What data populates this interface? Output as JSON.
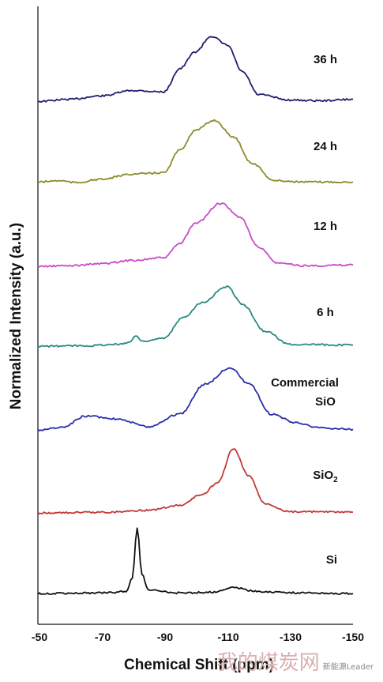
{
  "chart_data": {
    "type": "line",
    "xlabel": "Chemical Shift (ppm)",
    "ylabel": "Normalized Intensity (a.u.)",
    "xlim": [
      -50,
      -150
    ],
    "x_ticks": [
      "-50",
      "-70",
      "-90",
      "-110",
      "-130",
      "-150"
    ],
    "series": [
      {
        "name": "36 h",
        "color": "#1f1f6e",
        "points": [
          [
            -50,
            0.02
          ],
          [
            -60,
            0.05
          ],
          [
            -70,
            0.1
          ],
          [
            -80,
            0.18
          ],
          [
            -90,
            0.16
          ],
          [
            -95,
            0.5
          ],
          [
            -100,
            0.75
          ],
          [
            -105,
            0.98
          ],
          [
            -110,
            0.85
          ],
          [
            -115,
            0.45
          ],
          [
            -120,
            0.12
          ],
          [
            -130,
            0.04
          ],
          [
            -140,
            0.03
          ],
          [
            -150,
            0.05
          ]
        ]
      },
      {
        "name": "24 h",
        "color": "#8c8c2a",
        "points": [
          [
            -50,
            0.02
          ],
          [
            -57,
            0.04
          ],
          [
            -62,
            0.01
          ],
          [
            -70,
            0.06
          ],
          [
            -80,
            0.14
          ],
          [
            -90,
            0.16
          ],
          [
            -95,
            0.5
          ],
          [
            -100,
            0.8
          ],
          [
            -106,
            0.95
          ],
          [
            -112,
            0.7
          ],
          [
            -118,
            0.3
          ],
          [
            -125,
            0.04
          ],
          [
            -135,
            0.02
          ],
          [
            -150,
            0.02
          ]
        ]
      },
      {
        "name": "12 h",
        "color": "#c84bc8",
        "points": [
          [
            -50,
            0.01
          ],
          [
            -60,
            0.02
          ],
          [
            -70,
            0.05
          ],
          [
            -80,
            0.1
          ],
          [
            -90,
            0.14
          ],
          [
            -95,
            0.35
          ],
          [
            -100,
            0.65
          ],
          [
            -108,
            0.95
          ],
          [
            -114,
            0.75
          ],
          [
            -120,
            0.3
          ],
          [
            -126,
            0.06
          ],
          [
            -135,
            0.02
          ],
          [
            -150,
            0.03
          ]
        ]
      },
      {
        "name": "6 h",
        "color": "#2a8a80",
        "points": [
          [
            -50,
            0.02
          ],
          [
            -65,
            0.03
          ],
          [
            -75,
            0.05
          ],
          [
            -79,
            0.08
          ],
          [
            -81,
            0.18
          ],
          [
            -83,
            0.1
          ],
          [
            -90,
            0.14
          ],
          [
            -96,
            0.45
          ],
          [
            -102,
            0.68
          ],
          [
            -110,
            0.92
          ],
          [
            -115,
            0.65
          ],
          [
            -122,
            0.25
          ],
          [
            -130,
            0.05
          ],
          [
            -150,
            0.04
          ]
        ]
      },
      {
        "name": "Commercial SiO",
        "color": "#2b2fa8",
        "points": [
          [
            -50,
            0.01
          ],
          [
            -58,
            0.05
          ],
          [
            -65,
            0.22
          ],
          [
            -75,
            0.18
          ],
          [
            -85,
            0.06
          ],
          [
            -95,
            0.25
          ],
          [
            -103,
            0.7
          ],
          [
            -111,
            0.95
          ],
          [
            -117,
            0.7
          ],
          [
            -124,
            0.25
          ],
          [
            -132,
            0.12
          ],
          [
            -140,
            0.04
          ],
          [
            -150,
            0.02
          ]
        ]
      },
      {
        "name": "SiO2",
        "color": "#c03a3a",
        "points": [
          [
            -50,
            0.01
          ],
          [
            -70,
            0.02
          ],
          [
            -85,
            0.05
          ],
          [
            -95,
            0.12
          ],
          [
            -102,
            0.28
          ],
          [
            -107,
            0.45
          ],
          [
            -112,
            0.95
          ],
          [
            -117,
            0.55
          ],
          [
            -122,
            0.15
          ],
          [
            -130,
            0.03
          ],
          [
            -150,
            0.02
          ]
        ]
      },
      {
        "name": "Si",
        "color": "#111111",
        "points": [
          [
            -50,
            0.01
          ],
          [
            -70,
            0.02
          ],
          [
            -78,
            0.04
          ],
          [
            -80,
            0.25
          ],
          [
            -81.5,
            0.98
          ],
          [
            -83,
            0.3
          ],
          [
            -85,
            0.06
          ],
          [
            -95,
            0.02
          ],
          [
            -105,
            0.03
          ],
          [
            -112,
            0.1
          ],
          [
            -120,
            0.04
          ],
          [
            -135,
            0.02
          ],
          [
            -150,
            0.01
          ]
        ]
      }
    ],
    "labels": [
      "36 h",
      "24 h",
      "12 h",
      "6 h",
      "Commercial",
      "SiO",
      "SiO",
      "2",
      "Si"
    ]
  },
  "watermark": {
    "main": "我的煤炭网",
    "sub": "新能源Leader"
  }
}
